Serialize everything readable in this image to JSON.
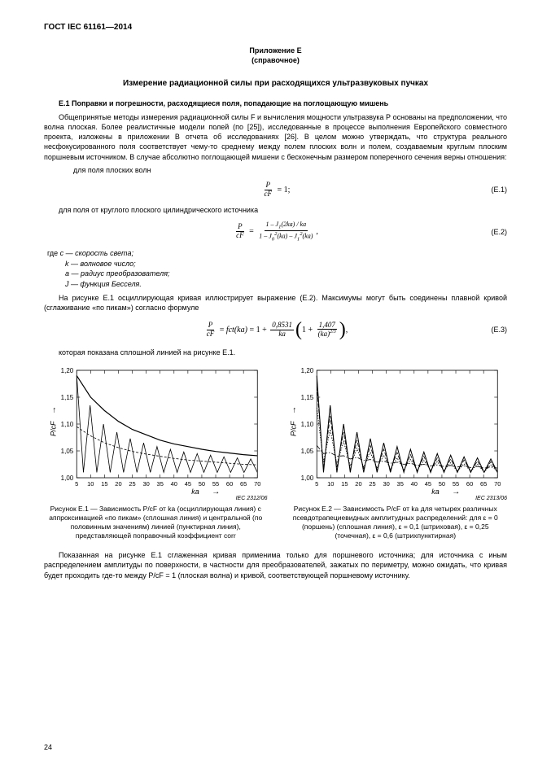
{
  "header": "ГОСТ IEC 61161—2014",
  "annex": {
    "title": "Приложение Е",
    "subtitle": "(справочное)"
  },
  "mainTitle": "Измерение радиационной силы при расходящихся ультразвуковых пучках",
  "section": {
    "number": "Е.1",
    "title": "Поправки и погрешности, расходящиеся поля, попадающие на поглощающую мишень"
  },
  "para1": "Общепринятые методы измерения радиационной силы F и вычисления мощности ультразвука Р основаны на предположении, что волна плоская. Более реалистичные модели полей (по [25]), исследованные в процессе выполнения Европейского совместного проекта, изложены в приложении В отчета об исследованиях [26]. В целом можно утверждать, что структура реального несфокусированного поля соответствует чему-то среднему между полем плоских волн и полем, создаваемым круглым плоским поршневым источником. В случае абсолютно поглощающей мишени с бесконечным размером поперечного сечения верны отношения:",
  "pline1": "для поля плоских волн",
  "eq1": {
    "num": "(Е.1)"
  },
  "pline2": "для поля от круглого плоского цилиндрического источника",
  "eq2": {
    "num": "(Е.2)"
  },
  "defs": {
    "intro": "где",
    "c": "с  — скорость света;",
    "k": "k  — волновое число;",
    "a": "a  — радиус преобразователя;",
    "j": "J  — функция Бесселя."
  },
  "para2": "На рисунке Е.1 осциллирующая кривая иллюстрирует выражение (Е.2). Максимумы могут быть соединены плавной кривой (сглаживание «по пикам») согласно формуле",
  "eq3": {
    "num": "(Е.3)",
    "c1": "0,8531",
    "c2": "1,407"
  },
  "para3": "которая показана сплошной линией на рисунке Е.1.",
  "chart": {
    "yTicks": [
      "1,20",
      "1,15",
      "1,10",
      "1,05",
      "1,00"
    ],
    "xTicks": [
      "5",
      "10",
      "15",
      "20",
      "25",
      "30",
      "35",
      "40",
      "45",
      "50",
      "55",
      "60",
      "65",
      "70"
    ],
    "xlabel": "ka",
    "ylabel": "P/cF",
    "ylim": [
      1.0,
      1.2
    ],
    "xlim": [
      5,
      70
    ],
    "bg": "#ffffff",
    "grid": "#000000",
    "curveColor": "#000000"
  },
  "chart1": {
    "iec": "IEC  2312/06",
    "caption": "Рисунок Е.1 — Зависимость P/cF от ka (осциллирующая линия) с аппроксимацией «по пикам» (сплошная линия) и центральной (по половинным значениям) линией (пунктирная линия), представляющей поправочный коэффициент corr",
    "osc": [
      1.19,
      1.01,
      1.135,
      1.01,
      1.1,
      1.01,
      1.085,
      1.01,
      1.073,
      1.01,
      1.065,
      1.01,
      1.058,
      1.01,
      1.053,
      1.01,
      1.048,
      1.01,
      1.045,
      1.01,
      1.042,
      1.01,
      1.039,
      1.01,
      1.037,
      1.01,
      1.035,
      1.01
    ],
    "peak": [
      1.19,
      1.15,
      1.125,
      1.105,
      1.09,
      1.08,
      1.07,
      1.063,
      1.058,
      1.053,
      1.049,
      1.046,
      1.043,
      1.041
    ],
    "mid": [
      1.095,
      1.078,
      1.065,
      1.056,
      1.049,
      1.044,
      1.04,
      1.036,
      1.033,
      1.031,
      1.029,
      1.027,
      1.025,
      1.024
    ]
  },
  "chart2": {
    "iec": "IEC  2313/06",
    "caption": "Рисунок Е.2 — Зависимость P/cF от ka для четырех различных псевдотрапециевидных амплитудных распределений: для ε = 0 (поршень) (сплошная линия), ε = 0,1 (штриховая), ε = 0,25 (точечная), ε = 0,6 (штрихпунктирная)",
    "s1": [
      1.19,
      1.01,
      1.135,
      1.01,
      1.1,
      1.01,
      1.085,
      1.01,
      1.073,
      1.01,
      1.065,
      1.01,
      1.058,
      1.01,
      1.053,
      1.01,
      1.048,
      1.01,
      1.045,
      1.01,
      1.042,
      1.01,
      1.039,
      1.01,
      1.037,
      1.01,
      1.035,
      1.01
    ],
    "s2": [
      1.17,
      1.02,
      1.115,
      1.02,
      1.085,
      1.015,
      1.07,
      1.015,
      1.06,
      1.015,
      1.053,
      1.015,
      1.047,
      1.012,
      1.043,
      1.012,
      1.04,
      1.012,
      1.037,
      1.012,
      1.035,
      1.012,
      1.033,
      1.012,
      1.031,
      1.01,
      1.03,
      1.01
    ],
    "s3": [
      1.13,
      1.03,
      1.09,
      1.025,
      1.068,
      1.022,
      1.055,
      1.02,
      1.047,
      1.018,
      1.042,
      1.016,
      1.037,
      1.015,
      1.034,
      1.014,
      1.032,
      1.014,
      1.03,
      1.013,
      1.028,
      1.012,
      1.026,
      1.012,
      1.025,
      1.011,
      1.024,
      1.011
    ],
    "s4": [
      1.06,
      1.045,
      1.047,
      1.04,
      1.041,
      1.035,
      1.038,
      1.032,
      1.034,
      1.029,
      1.031,
      1.027,
      1.029,
      1.025,
      1.027,
      1.023,
      1.025,
      1.022,
      1.024,
      1.021,
      1.023,
      1.02,
      1.022,
      1.019,
      1.021,
      1.018,
      1.02,
      1.018
    ]
  },
  "para4": "Показанная на рисунке Е.1 сглаженная кривая применима только для поршневого источника; для источника с иным распределением амплитуды по поверхности, в частности для преобразователей, зажатых по периметру, можно ожидать, что кривая будет проходить где-то между P/cF = 1 (плоская волна) и кривой, соответствующей поршневому источнику.",
  "pageNum": "24"
}
